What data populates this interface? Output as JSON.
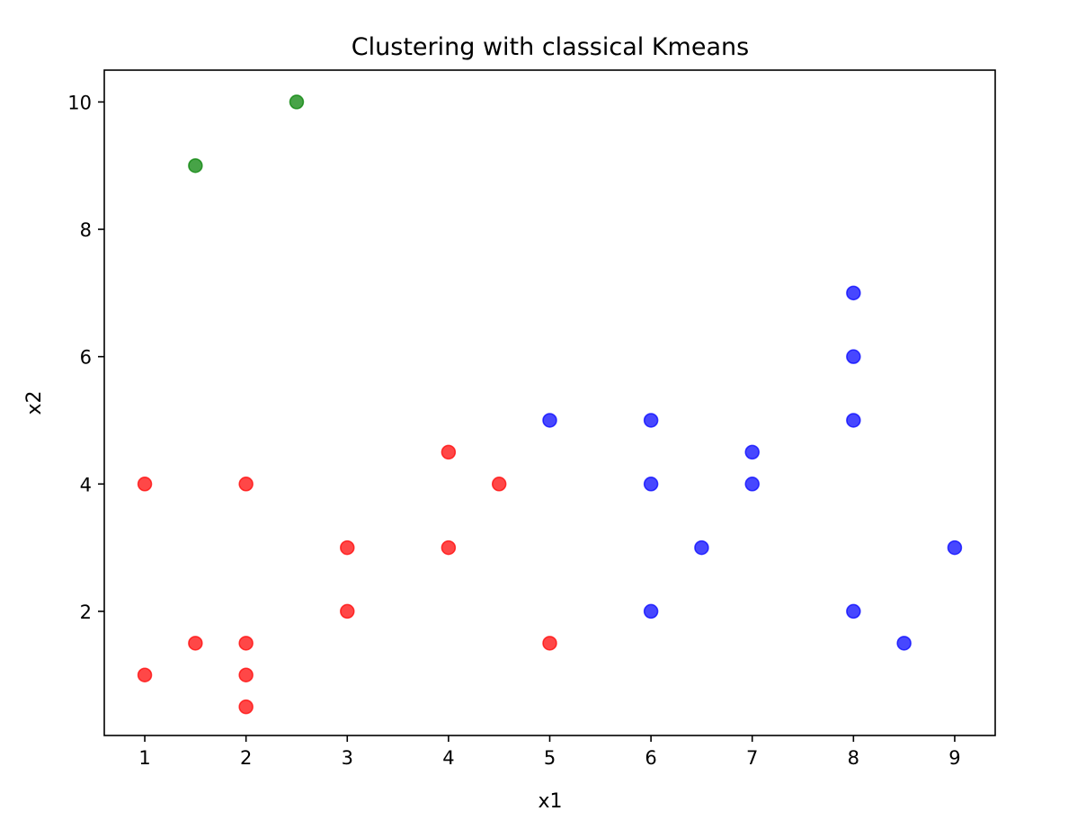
{
  "chart_data": {
    "type": "scatter",
    "title": "Clustering with classical Kmeans",
    "xlabel": "x1",
    "ylabel": "x2",
    "xlim": [
      0.6,
      9.4
    ],
    "ylim": [
      0.05,
      10.5
    ],
    "xticks": [
      1,
      2,
      3,
      4,
      5,
      6,
      7,
      8,
      9
    ],
    "yticks": [
      2,
      4,
      6,
      8,
      10
    ],
    "grid": false,
    "legend": false,
    "series": [
      {
        "color": "#ff0000",
        "x": [
          1,
          1,
          1.5,
          2,
          2,
          2,
          2,
          3,
          3,
          4,
          4,
          4.5,
          5
        ],
        "y": [
          4,
          1,
          1.5,
          4,
          1.5,
          1,
          0.5,
          3,
          2,
          4.5,
          3,
          4,
          1.5
        ]
      },
      {
        "color": "#0000ff",
        "x": [
          5,
          6,
          6,
          6,
          6.5,
          7,
          7,
          8,
          8,
          8,
          8,
          8.5,
          9
        ],
        "y": [
          5,
          5,
          4,
          2,
          3,
          4.5,
          4,
          7,
          6,
          5,
          2,
          1.5,
          3
        ]
      },
      {
        "color": "#008000",
        "x": [
          1.5,
          2.5
        ],
        "y": [
          9,
          10
        ]
      }
    ]
  }
}
